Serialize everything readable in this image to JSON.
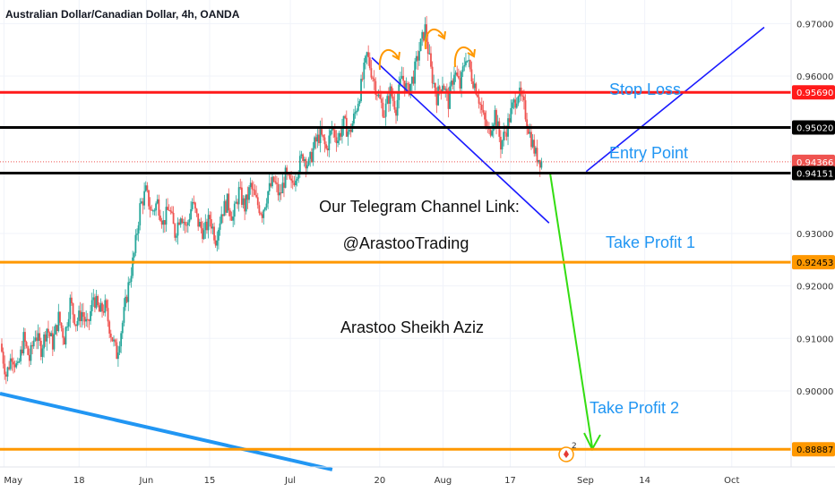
{
  "header": {
    "symbol_title": "Australian Dollar/Canadian Dollar, 4h, OANDA"
  },
  "colors": {
    "up": "#26a69a",
    "down": "#ef5350",
    "stop_loss": "#ff1a1a",
    "entry": "#000000",
    "take_profit": "#ff9800",
    "channel": "#1a1aff",
    "trend_blue": "#2196f3",
    "arrow_green": "#33dd11",
    "annotation_blue": "#2196f3",
    "curve_orange": "#ff9800"
  },
  "annotations": {
    "stop_loss": "Stop Loss",
    "entry_point": "Entry Point",
    "take_profit_1": "Take Profit 1",
    "take_profit_2": "Take Profit 2",
    "telegram_label": "Our Telegram Channel Link:",
    "telegram_handle": "@ArastooTrading",
    "author": "Arastoo Sheikh Aziz"
  },
  "event_badge": {
    "count": "2",
    "icon": "flag-canada-icon"
  },
  "chart_data": {
    "type": "candlestick",
    "title": "Australian Dollar/Canadian Dollar, 4h, OANDA",
    "ylim": [
      0.8855,
      0.9745
    ],
    "y_ticks": [
      "0.97000",
      "0.96000",
      "0.93000",
      "0.92000",
      "0.91000",
      "0.90000"
    ],
    "x_ticks": [
      "May",
      "18",
      "Jun",
      "15",
      "Jul",
      "20",
      "Aug",
      "17",
      "Sep",
      "14",
      "Oct"
    ],
    "price_lines": [
      {
        "name": "stop_loss",
        "value": 0.9569,
        "label": "0.95690",
        "style": "stop_loss"
      },
      {
        "name": "entry_point",
        "value": 0.9502,
        "label": "0.95020",
        "style": "entry"
      },
      {
        "name": "current_price",
        "value": 0.94366,
        "label": "0.94366",
        "style": "current"
      },
      {
        "name": "entry_lower",
        "value": 0.94151,
        "label": "0.94151",
        "style": "entry"
      },
      {
        "name": "take_profit_1",
        "value": 0.92453,
        "label": "0.92453",
        "style": "take_profit"
      },
      {
        "name": "take_profit_2",
        "value": 0.88887,
        "label": "0.88887",
        "style": "take_profit"
      }
    ],
    "price_path": [
      [
        0.909,
        0.903,
        0.907,
        0.904,
        0.91,
        0.906,
        0.911,
        0.908,
        0.912,
        0.909,
        0.914,
        0.91,
        0.917,
        0.913,
        0.915,
        0.912,
        0.918,
        0.915,
        0.916,
        0.911,
        0.907,
        0.913,
        0.92,
        0.926,
        0.935,
        0.938,
        0.934,
        0.936,
        0.932,
        0.935,
        0.93,
        0.934,
        0.931,
        0.936,
        0.932,
        0.93,
        0.933,
        0.929,
        0.934,
        0.936,
        0.933,
        0.938,
        0.935,
        0.939,
        0.936,
        0.934,
        0.938,
        0.94,
        0.937,
        0.941,
        0.939,
        0.942,
        0.945,
        0.943,
        0.947,
        0.949,
        0.946,
        0.95,
        0.948,
        0.951,
        0.949,
        0.953,
        0.958,
        0.964,
        0.96,
        0.956,
        0.953,
        0.957,
        0.954,
        0.96,
        0.957,
        0.96,
        0.965,
        0.969,
        0.961,
        0.956,
        0.959,
        0.955,
        0.961,
        0.958,
        0.964,
        0.96,
        0.957,
        0.952,
        0.949,
        0.953,
        0.947,
        0.95,
        0.954,
        0.957,
        0.954,
        0.949,
        0.945,
        0.9437
      ]
    ],
    "channel": {
      "upper": [
        [
          0.966,
          0.9693
        ],
        [
          0.741,
          0.9418
        ]
      ],
      "lower": [
        [
          0.47,
          0.9635
        ],
        [
          0.694,
          0.932
        ]
      ]
    },
    "trend_line": [
      [
        0.0,
        0.8995
      ],
      [
        0.42,
        0.885
      ]
    ],
    "projection_arrow": [
      [
        0.66,
        0.9415
      ],
      [
        0.71,
        0.8889
      ]
    ]
  }
}
